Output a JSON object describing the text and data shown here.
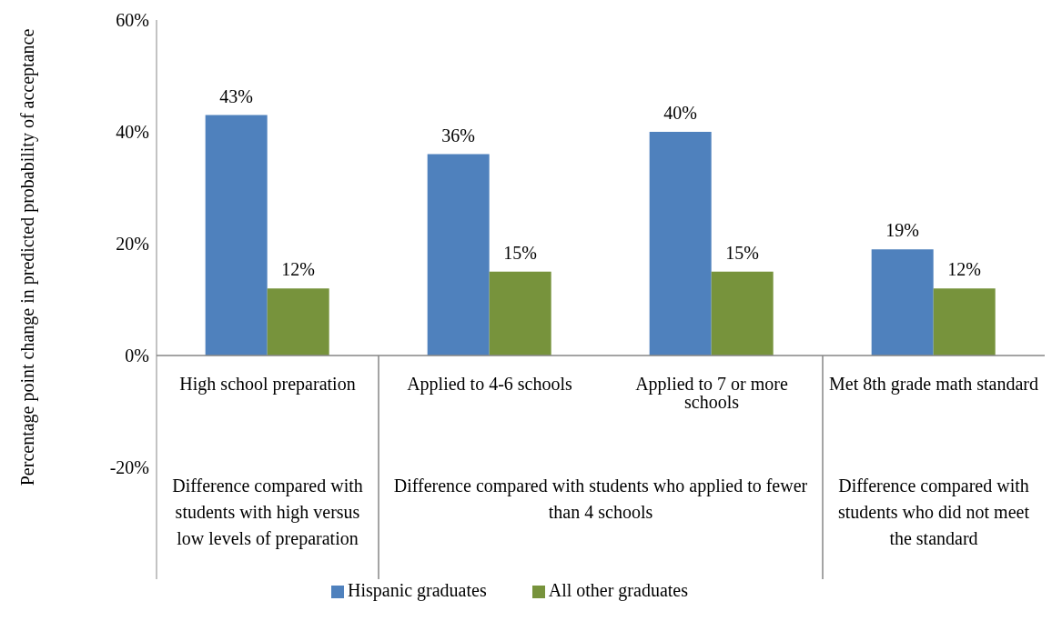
{
  "chart_data": {
    "type": "bar",
    "xlabel": null,
    "ylabel": "Percentage point change in predicted probability of acceptance",
    "categories": [
      "High school preparation",
      "Applied to 4-6 schools",
      "Applied to 7 or more schools",
      "Met 8th grade math standard"
    ],
    "series": [
      {
        "name": "Hispanic graduates",
        "color": "#4f81bd",
        "values": [
          43,
          36,
          40,
          19
        ],
        "value_labels": [
          "43%",
          "36%",
          "40%",
          "19%"
        ]
      },
      {
        "name": "All other graduates",
        "color": "#77933c",
        "values": [
          12,
          15,
          15,
          12
        ],
        "value_labels": [
          "12%",
          "15%",
          "15%",
          "12%"
        ]
      }
    ],
    "ylim": [
      -40,
      60
    ],
    "yticks": [
      {
        "value": -20,
        "label": "-20%"
      },
      {
        "value": 0,
        "label": "0%"
      },
      {
        "value": 20,
        "label": "20%"
      },
      {
        "value": 40,
        "label": "40%"
      },
      {
        "value": 60,
        "label": "60%"
      }
    ],
    "grid": false,
    "legend": "bottom",
    "annotations": [
      "Difference compared with students with high versus low levels of preparation",
      "Difference compared with students who applied to fewer than 4 schools",
      "Difference compared with students who did not meet the standard"
    ]
  }
}
